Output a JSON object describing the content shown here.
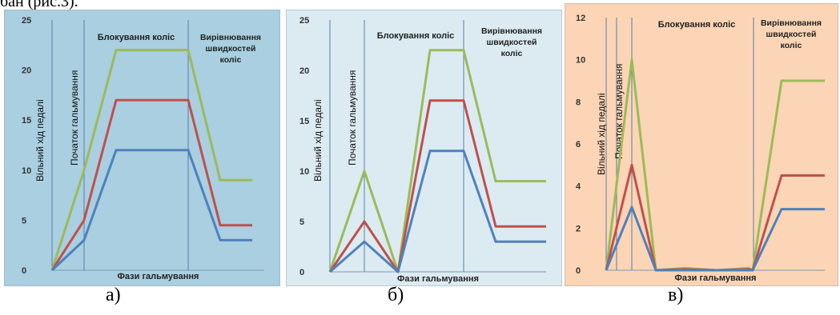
{
  "top_text": "бан (рис.3).",
  "captions": [
    "а)",
    "б)",
    "в)"
  ],
  "chart_data": [
    {
      "type": "line",
      "xlabel": "Фази гальмування",
      "ylabel": "",
      "ylim": [
        0,
        25
      ],
      "yticks": [
        0,
        5,
        10,
        15,
        20,
        25
      ],
      "background": "#a9cfe0",
      "phase_labels": [
        "Вільний хід педалі",
        "Початок гальмування",
        "Блокування коліс",
        "Вирівнювання швидкостей коліс"
      ],
      "series": [
        {
          "color": "#9bbb59",
          "x": [
            0,
            1,
            2,
            3,
            4,
            5
          ],
          "y": [
            0,
            10,
            22,
            22,
            9,
            9
          ]
        },
        {
          "color": "#c0504d",
          "x": [
            0,
            1,
            2,
            3,
            4,
            5
          ],
          "y": [
            0,
            5,
            17,
            17,
            4.5,
            4.5
          ]
        },
        {
          "color": "#4f81bd",
          "x": [
            0,
            1,
            2,
            3,
            4,
            5
          ],
          "y": [
            0,
            3,
            12,
            12,
            3,
            3
          ]
        }
      ]
    },
    {
      "type": "line",
      "xlabel": "Фази гальмування",
      "ylabel": "",
      "ylim": [
        0,
        25
      ],
      "yticks": [
        0,
        5,
        10,
        15,
        20,
        25
      ],
      "background": "#dcebf2",
      "phase_labels": [
        "Вільний хід педалі",
        "Початок гальмування",
        "Блокування коліс",
        "Вирівнювання швидкостей коліс"
      ],
      "series": [
        {
          "color": "#9bbb59",
          "x": [
            0,
            1,
            2,
            3,
            4,
            5,
            6,
            7
          ],
          "y": [
            0,
            10,
            0,
            22,
            22,
            9,
            9,
            9
          ]
        },
        {
          "color": "#c0504d",
          "x": [
            0,
            1,
            2,
            3,
            4,
            5,
            6,
            7
          ],
          "y": [
            0,
            5,
            0,
            17,
            17,
            4.5,
            4.5,
            4.5
          ]
        },
        {
          "color": "#4f81bd",
          "x": [
            0,
            1,
            2,
            3,
            4,
            5,
            6,
            7
          ],
          "y": [
            0,
            3,
            0,
            12,
            12,
            3,
            3,
            3
          ]
        }
      ]
    },
    {
      "type": "line",
      "xlabel": "Фази гальмування",
      "ylabel": "",
      "ylim": [
        0,
        12
      ],
      "yticks": [
        0,
        2,
        4,
        6,
        8,
        10,
        12
      ],
      "background": "#fbd5b5",
      "phase_labels": [
        "Вільний хід педалі",
        "Початок гальмування",
        "Блокування коліс",
        "Вирівнювання швидкостей коліс"
      ],
      "series": [
        {
          "color": "#9bbb59",
          "x": [
            0,
            1,
            2,
            3,
            4,
            5,
            6,
            7,
            8
          ],
          "y": [
            0,
            10,
            0,
            0.1,
            0,
            0.1,
            0,
            9,
            9
          ]
        },
        {
          "color": "#c0504d",
          "x": [
            0,
            1,
            2,
            3,
            4,
            5,
            6,
            7,
            8
          ],
          "y": [
            0,
            5,
            0,
            0.05,
            0,
            0.05,
            0,
            4.5,
            4.5
          ]
        },
        {
          "color": "#4f81bd",
          "x": [
            0,
            1,
            2,
            3,
            4,
            5,
            6,
            7,
            8
          ],
          "y": [
            0,
            3,
            0,
            0,
            0,
            0,
            0,
            2.9,
            2.9
          ]
        }
      ]
    }
  ]
}
